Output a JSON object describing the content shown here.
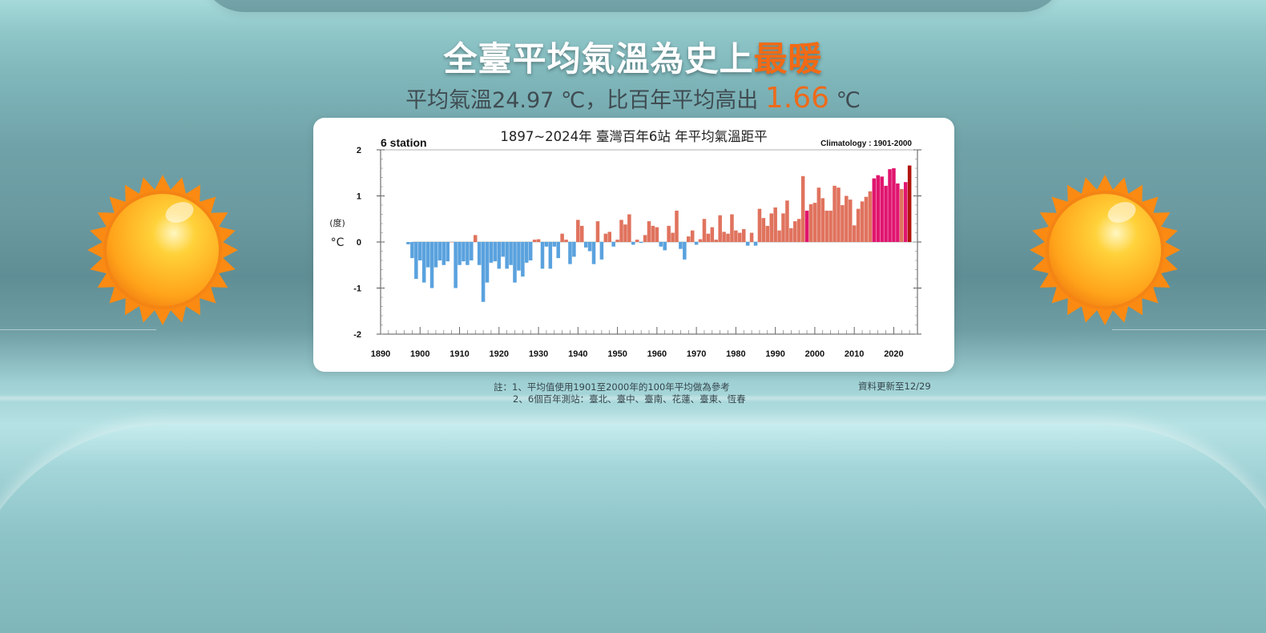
{
  "headline": {
    "prefix": "全臺平均氣溫為史上",
    "highlight": "最暖"
  },
  "subline": {
    "prefix": "平均氣溫24.97 ℃，比百年平均高出",
    "value": "1.66",
    "unit": "℃"
  },
  "chart_data": {
    "type": "bar",
    "title": "1897~2024年  臺灣百年6站 年平均氣溫距平",
    "station_label": "6 station",
    "climatology_label": "Climatology : 1901-2000",
    "ylabel_top": "(度)",
    "ylabel_unit": "°C",
    "xlim": [
      1890,
      2026
    ],
    "ylim": [
      -2,
      2
    ],
    "x_ticks": [
      1890,
      1900,
      1910,
      1920,
      1930,
      1940,
      1950,
      1960,
      1970,
      1980,
      1990,
      2000,
      2010,
      2020
    ],
    "y_ticks": [
      -2,
      -1,
      0,
      1,
      2
    ],
    "colors": {
      "negative": "#5aa2de",
      "positive": "#e0735e",
      "warmest_decade": "#e0156e",
      "record_years": "#e0156e",
      "latest": "#b0150e"
    },
    "start_year": 1897,
    "values": [
      -0.05,
      -0.35,
      -0.8,
      -0.4,
      -0.88,
      -0.55,
      -1.0,
      -0.55,
      -0.4,
      -0.5,
      -0.42,
      0.0,
      -1.0,
      -0.5,
      -0.42,
      -0.5,
      -0.4,
      0.15,
      -0.5,
      -1.3,
      -0.88,
      -0.45,
      -0.42,
      -0.58,
      -0.32,
      -0.58,
      -0.5,
      -0.88,
      -0.62,
      -0.75,
      -0.45,
      -0.4,
      0.05,
      0.06,
      -0.58,
      -0.1,
      -0.58,
      -0.1,
      -0.35,
      0.18,
      0.05,
      -0.48,
      -0.32,
      0.48,
      0.35,
      -0.12,
      -0.2,
      -0.48,
      0.45,
      -0.38,
      0.18,
      0.22,
      -0.1,
      0.05,
      0.48,
      0.38,
      0.6,
      -0.06,
      0.05,
      -0.02,
      0.15,
      0.45,
      0.35,
      0.32,
      -0.1,
      -0.18,
      0.35,
      0.2,
      0.68,
      -0.15,
      -0.38,
      0.12,
      0.25,
      -0.06,
      0.06,
      0.5,
      0.18,
      0.32,
      0.05,
      0.58,
      0.22,
      0.18,
      0.6,
      0.25,
      0.2,
      0.28,
      -0.08,
      0.2,
      -0.08,
      0.72,
      0.52,
      0.35,
      0.62,
      0.75,
      0.25,
      0.62,
      0.9,
      0.3,
      0.45,
      0.5,
      1.43,
      0.68,
      0.82,
      0.85,
      1.18,
      0.95,
      0.68,
      0.68,
      1.22,
      1.18,
      0.8,
      1.0,
      0.92,
      0.36,
      0.72,
      0.88,
      0.98,
      1.1,
      1.38,
      1.45,
      1.42,
      1.22,
      1.58,
      1.6,
      1.27,
      1.15,
      1.3,
      1.66
    ],
    "highlight_years": [
      1998,
      2015,
      2016,
      2017,
      2018,
      2019,
      2020,
      2021,
      2023
    ],
    "latest_year": 2024
  },
  "notes": {
    "line1": "註：1、平均值使用1901至2000年的100年平均做為參考",
    "line2": "2、6個百年測站：臺北、臺中、臺南、花蓮、臺東、恆春",
    "updated": "資料更新至12/29"
  }
}
